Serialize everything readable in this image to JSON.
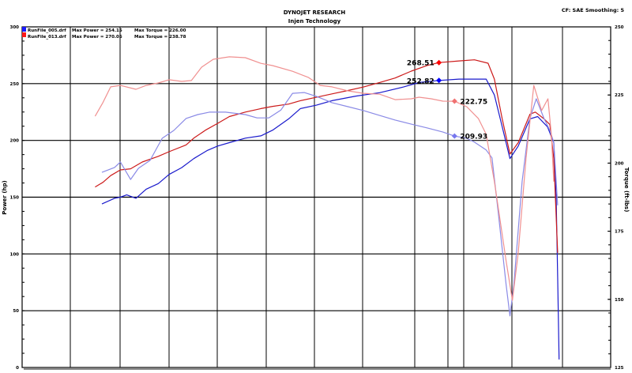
{
  "header": {
    "title": "DYNOJET RESEARCH",
    "subtitle": "Injen Technology",
    "settings": "CF: SAE  Smoothing: 5"
  },
  "legend": [
    {
      "file": "RunFile_005.drf",
      "power": "Max Power = 254.15",
      "torque": "Max Torque = 226.00",
      "color": "#1a1aff"
    },
    {
      "file": "RunFile_013.drf",
      "power": "Max Power = 270.05",
      "torque": "Max Torque = 238.78",
      "color": "#ff1a1a"
    }
  ],
  "chart_data": {
    "type": "line",
    "title": "DYNOJET RESEARCH",
    "subtitle": "Injen Technology",
    "ylabel": "Power (hp)",
    "y2label": "Torque (ft-lbs)",
    "ylim": [
      0,
      300
    ],
    "y2lim": [
      125,
      250
    ],
    "yticks": [
      "0",
      "50",
      "100",
      "150",
      "200",
      "250",
      "300"
    ],
    "y2ticks": [
      "125",
      "150",
      "175",
      "200",
      "225",
      "250"
    ],
    "xlim": [
      0,
      12.1
    ],
    "grid": true,
    "legend_position": "top-left",
    "series": [
      {
        "name": "RunFile_005.drf",
        "quantity": "power",
        "axis": "left",
        "color": "#1a1acc",
        "x": [
          1.64,
          1.9,
          2.02,
          2.15,
          2.34,
          2.55,
          2.8,
          3.02,
          3.28,
          3.53,
          3.8,
          4.02,
          4.26,
          4.59,
          4.91,
          5.15,
          5.48,
          5.72,
          6.05,
          6.37,
          6.86,
          7.35,
          7.84,
          8.16,
          8.57,
          8.98,
          9.54,
          9.71,
          9.87,
          10.03,
          10.2,
          10.44,
          10.6,
          10.8,
          10.93,
          10.98,
          11.01,
          11.04
        ],
        "y": [
          144,
          149,
          150,
          152,
          149,
          157,
          162,
          170,
          176,
          184,
          191,
          195,
          198,
          202,
          204,
          209,
          219,
          228,
          231,
          235,
          239,
          242,
          247,
          251,
          252.82,
          254,
          254,
          240,
          212,
          184,
          195,
          219,
          221,
          212,
          198,
          150,
          80,
          7
        ]
      },
      {
        "name": "RunFile_013.drf",
        "quantity": "power",
        "axis": "left",
        "color": "#cc1a1a",
        "x": [
          1.5,
          1.66,
          1.82,
          2.02,
          2.23,
          2.47,
          2.8,
          3.02,
          3.37,
          3.53,
          3.77,
          4.02,
          4.26,
          4.59,
          4.91,
          5.15,
          5.48,
          5.72,
          6.05,
          6.37,
          6.7,
          7.02,
          7.35,
          7.67,
          8.0,
          8.33,
          8.57,
          8.98,
          9.3,
          9.58,
          9.71,
          9.87,
          10.03,
          10.2,
          10.44,
          10.55,
          10.73,
          10.85,
          10.93,
          11.01
        ],
        "y": [
          159,
          163,
          169,
          174,
          175,
          181,
          186,
          190,
          196,
          202,
          209,
          215,
          221,
          225,
          228,
          230,
          232,
          235,
          238,
          241,
          244,
          247,
          251,
          255,
          261,
          266,
          268.51,
          270,
          271,
          268,
          254,
          219,
          188,
          198,
          223,
          225,
          219,
          214,
          184,
          101
        ]
      },
      {
        "name": "RunFile_005.drf",
        "quantity": "torque",
        "axis": "right",
        "color": "#8a8ae6",
        "x": [
          1.64,
          1.9,
          2.02,
          2.23,
          2.39,
          2.63,
          2.88,
          3.12,
          3.37,
          3.61,
          3.85,
          4.18,
          4.59,
          4.83,
          5.07,
          5.32,
          5.56,
          5.8,
          6.05,
          6.37,
          6.7,
          7.02,
          7.35,
          7.67,
          8.0,
          8.33,
          8.65,
          8.89,
          9.14,
          9.3,
          9.54,
          9.66,
          9.79,
          9.95,
          10.03,
          10.11,
          10.28,
          10.44,
          10.57,
          10.73,
          10.85,
          10.93,
          11.01
        ],
        "y": [
          196.6,
          198.4,
          200.4,
          194.0,
          198.1,
          201.0,
          209.1,
          212.0,
          216.4,
          217.8,
          218.7,
          218.7,
          217.8,
          216.6,
          216.6,
          219.5,
          225.6,
          225.9,
          224.5,
          222.2,
          220.7,
          219.3,
          217.5,
          215.8,
          214.3,
          212.9,
          211.4,
          209.93,
          209.1,
          207.7,
          204.8,
          201.9,
          181.6,
          155.5,
          143.9,
          155.5,
          193.2,
          216.4,
          223.6,
          216.4,
          212.0,
          207.7,
          184.5
        ]
      },
      {
        "name": "RunFile_013.drf",
        "quantity": "torque",
        "axis": "right",
        "color": "#f09090",
        "x": [
          1.5,
          1.66,
          1.82,
          2.02,
          2.34,
          2.55,
          2.8,
          3.02,
          3.28,
          3.48,
          3.69,
          3.93,
          4.26,
          4.59,
          4.91,
          5.15,
          5.56,
          5.89,
          6.13,
          6.37,
          6.7,
          7.02,
          7.35,
          7.67,
          8.0,
          8.16,
          8.41,
          8.65,
          8.89,
          9.14,
          9.38,
          9.54,
          9.71,
          9.95,
          10.08,
          10.2,
          10.36,
          10.52,
          10.68,
          10.81,
          10.88,
          10.93
        ],
        "y": [
          217.2,
          222.2,
          228.0,
          228.5,
          227.1,
          228.5,
          229.4,
          230.6,
          230.0,
          230.3,
          235.2,
          238.1,
          239.0,
          238.7,
          236.6,
          235.8,
          233.7,
          231.4,
          228.5,
          228.0,
          226.5,
          225.6,
          225.3,
          223.3,
          223.6,
          224.2,
          223.6,
          222.75,
          222.7,
          220.7,
          216.4,
          210.6,
          193.2,
          164.2,
          149.6,
          167.1,
          201.9,
          228.5,
          219.3,
          223.6,
          210.6,
          193.2
        ]
      }
    ],
    "annotations": [
      {
        "label": "268.51",
        "series": 1,
        "x": 8.57,
        "y": 268.51,
        "color": "#ff0000",
        "side": "left"
      },
      {
        "label": "252.82",
        "series": 0,
        "x": 8.57,
        "y": 252.82,
        "color": "#0000ff",
        "side": "left"
      },
      {
        "label": "222.75",
        "series": 3,
        "x": 8.89,
        "y": 222.75,
        "color": "#f07070",
        "side": "right"
      },
      {
        "label": "209.93",
        "series": 2,
        "x": 8.89,
        "y": 209.93,
        "color": "#7777ee",
        "side": "right"
      }
    ]
  }
}
